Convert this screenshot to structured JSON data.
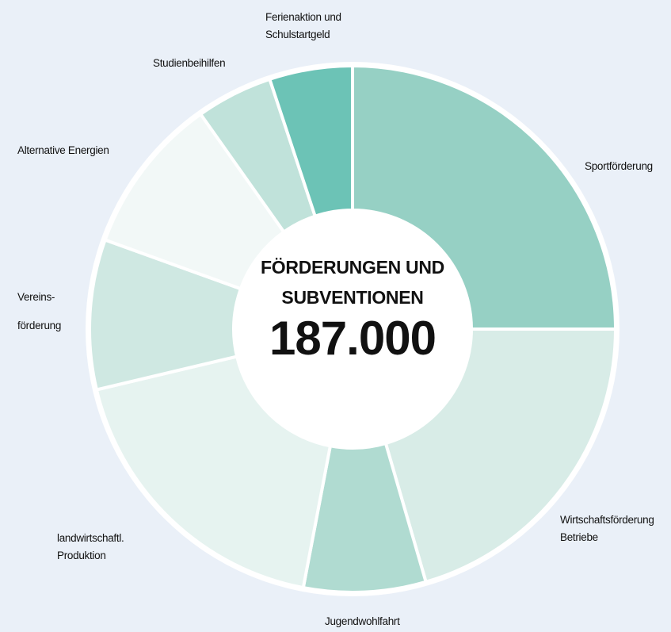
{
  "chart_data": {
    "type": "donut",
    "title": "FÖRDERUNGEN UND SUBVENTIONEN",
    "total": "187.000",
    "categories": [
      "Sportförderung",
      "Wirtschaftsförderung Betriebe",
      "Jugendwohlfahrt",
      "landwirtschaftl. Produktion",
      "Vereins-förderung",
      "Alternative Energien",
      "Studienbeihilfen",
      "Ferienaktion und Schulstartgeld"
    ],
    "values": [
      25,
      20.5,
      7.5,
      18.3,
      9.2,
      9.7,
      4.7,
      5.1
    ],
    "colors": [
      "#96d0c4",
      "#d8ece7",
      "#b0dbd1",
      "#e6f3f0",
      "#cfe8e2",
      "#f2f8f7",
      "#c0e2da",
      "#6cc3b6"
    ]
  }
}
